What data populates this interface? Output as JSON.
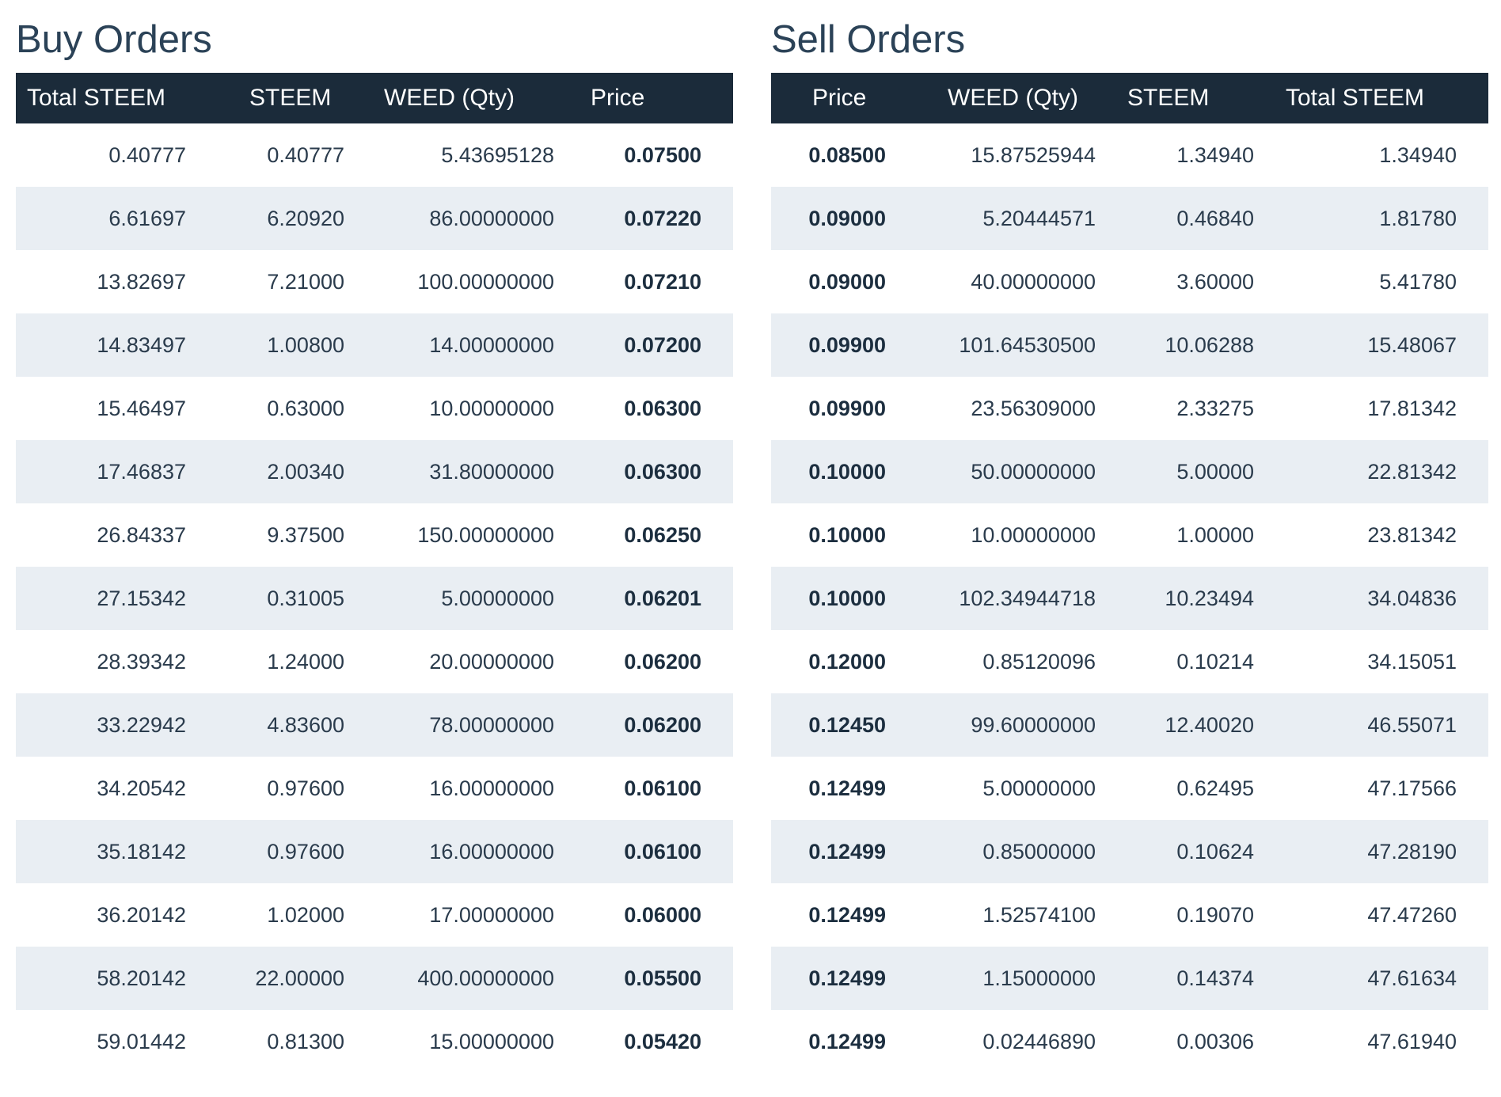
{
  "buy_orders": {
    "title": "Buy Orders",
    "columns": [
      "Total STEEM",
      "STEEM",
      "WEED (Qty)",
      "Price"
    ],
    "rows": [
      [
        "0.40777",
        "0.40777",
        "5.43695128",
        "0.07500"
      ],
      [
        "6.61697",
        "6.20920",
        "86.00000000",
        "0.07220"
      ],
      [
        "13.82697",
        "7.21000",
        "100.00000000",
        "0.07210"
      ],
      [
        "14.83497",
        "1.00800",
        "14.00000000",
        "0.07200"
      ],
      [
        "15.46497",
        "0.63000",
        "10.00000000",
        "0.06300"
      ],
      [
        "17.46837",
        "2.00340",
        "31.80000000",
        "0.06300"
      ],
      [
        "26.84337",
        "9.37500",
        "150.00000000",
        "0.06250"
      ],
      [
        "27.15342",
        "0.31005",
        "5.00000000",
        "0.06201"
      ],
      [
        "28.39342",
        "1.24000",
        "20.00000000",
        "0.06200"
      ],
      [
        "33.22942",
        "4.83600",
        "78.00000000",
        "0.06200"
      ],
      [
        "34.20542",
        "0.97600",
        "16.00000000",
        "0.06100"
      ],
      [
        "35.18142",
        "0.97600",
        "16.00000000",
        "0.06100"
      ],
      [
        "36.20142",
        "1.02000",
        "17.00000000",
        "0.06000"
      ],
      [
        "58.20142",
        "22.00000",
        "400.00000000",
        "0.05500"
      ],
      [
        "59.01442",
        "0.81300",
        "15.00000000",
        "0.05420"
      ]
    ]
  },
  "sell_orders": {
    "title": "Sell Orders",
    "columns": [
      "Price",
      "WEED (Qty)",
      "STEEM",
      "Total STEEM"
    ],
    "rows": [
      [
        "0.08500",
        "15.87525944",
        "1.34940",
        "1.34940"
      ],
      [
        "0.09000",
        "5.20444571",
        "0.46840",
        "1.81780"
      ],
      [
        "0.09000",
        "40.00000000",
        "3.60000",
        "5.41780"
      ],
      [
        "0.09900",
        "101.64530500",
        "10.06288",
        "15.48067"
      ],
      [
        "0.09900",
        "23.56309000",
        "2.33275",
        "17.81342"
      ],
      [
        "0.10000",
        "50.00000000",
        "5.00000",
        "22.81342"
      ],
      [
        "0.10000",
        "10.00000000",
        "1.00000",
        "23.81342"
      ],
      [
        "0.10000",
        "102.34944718",
        "10.23494",
        "34.04836"
      ],
      [
        "0.12000",
        "0.85120096",
        "0.10214",
        "34.15051"
      ],
      [
        "0.12450",
        "99.60000000",
        "12.40020",
        "46.55071"
      ],
      [
        "0.12499",
        "5.00000000",
        "0.62495",
        "47.17566"
      ],
      [
        "0.12499",
        "0.85000000",
        "0.10624",
        "47.28190"
      ],
      [
        "0.12499",
        "1.52574100",
        "0.19070",
        "47.47260"
      ],
      [
        "0.12499",
        "1.15000000",
        "0.14374",
        "47.61634"
      ],
      [
        "0.12499",
        "0.02446890",
        "0.00306",
        "47.61940"
      ]
    ]
  },
  "colors": {
    "header_bg": "#1b2b3a",
    "title_text": "#2b4257",
    "row_alt_bg": "#e9eef3",
    "cell_text": "#2a3b4c"
  }
}
